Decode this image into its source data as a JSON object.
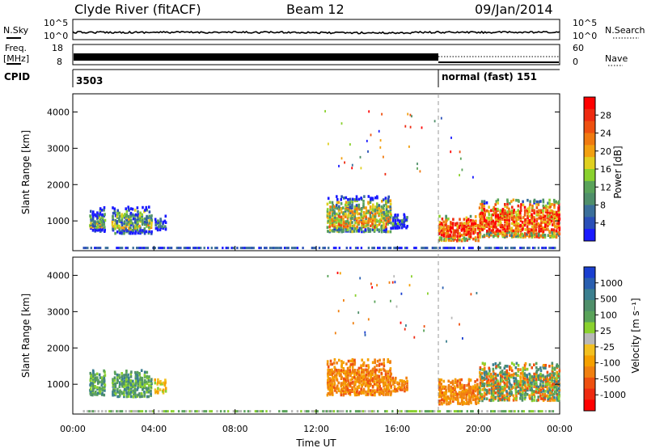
{
  "header": {
    "station": "Clyde River (fitACF)",
    "beam": "Beam 12",
    "date": "09/Jan/2014"
  },
  "strips": {
    "nsky_label": "N.Sky",
    "nsky_ticks": [
      "10^5",
      "10^0"
    ],
    "nsky_right_ticks": [
      "10^5",
      "10^0"
    ],
    "nsearch_label": "N.Search",
    "freq_label": "Freq.",
    "freq_unit": "[MHz]",
    "freq_ticks": [
      "18",
      "8"
    ],
    "nave_ticks": [
      "60",
      "0"
    ],
    "nave_label": "Nave",
    "cpid_label": "CPID",
    "cpid_first": "3503",
    "cpid_second": "normal (fast) 151"
  },
  "chart_data": [
    {
      "type": "heatmap",
      "name": "power-panel",
      "ylabel": "Slant Range [km]",
      "ylim": [
        180,
        4500
      ],
      "yticks": [
        1000,
        2000,
        3000,
        4000
      ],
      "xlim_hours": [
        0,
        24
      ],
      "colorbar": {
        "label": "Power [dB]",
        "ticks": [
          "4",
          "8",
          "12",
          "16",
          "20",
          "24",
          "28"
        ],
        "colors": [
          "#1a1aff",
          "#2a4fb8",
          "#3b6f9a",
          "#4f8f6a",
          "#5aa35a",
          "#8ad12e",
          "#e0d020",
          "#f2a010",
          "#f07a10",
          "#ee5010",
          "#ee2a10",
          "#ff0000"
        ]
      },
      "clusters": [
        {
          "t0": 0.8,
          "t1": 1.6,
          "r0": 700,
          "r1": 1400,
          "level": 0.4
        },
        {
          "t0": 1.9,
          "t1": 3.9,
          "r0": 650,
          "r1": 1400,
          "level": 0.45
        },
        {
          "t0": 4.0,
          "t1": 4.6,
          "r0": 750,
          "r1": 1150,
          "level": 0.25
        },
        {
          "t0": 12.5,
          "t1": 15.7,
          "r0": 700,
          "r1": 1700,
          "level": 0.6
        },
        {
          "t0": 15.7,
          "t1": 16.5,
          "r0": 800,
          "r1": 1200,
          "level": 0.25
        },
        {
          "t0": 18.0,
          "t1": 20.0,
          "r0": 450,
          "r1": 1150,
          "level": 0.95
        },
        {
          "t0": 20.0,
          "t1": 24.0,
          "r0": 550,
          "r1": 1600,
          "level": 0.9
        }
      ]
    },
    {
      "type": "heatmap",
      "name": "velocity-panel",
      "ylabel": "Slant Range [km]",
      "ylim": [
        180,
        4500
      ],
      "yticks": [
        1000,
        2000,
        3000,
        4000
      ],
      "xlim_hours": [
        0,
        24
      ],
      "xticks": [
        "00:00",
        "04:00",
        "08:00",
        "12:00",
        "16:00",
        "20:00",
        "00:00"
      ],
      "xlabel": "Time UT",
      "colorbar": {
        "label": "Velocity [m s⁻¹]",
        "ticks": [
          "1000",
          "500",
          "100",
          "25",
          "-25",
          "-100",
          "-500",
          "-1000"
        ],
        "colors": [
          "#1a3fd0",
          "#2a5fb0",
          "#3b7f8f",
          "#4f8f6a",
          "#5aa35a",
          "#8ad12e",
          "#b8b8b8",
          "#f2c020",
          "#f5a000",
          "#f08010",
          "#ee5010",
          "#ee2a10",
          "#ff0000"
        ]
      },
      "clusters": [
        {
          "t0": 0.8,
          "t1": 1.6,
          "r0": 700,
          "r1": 1400,
          "hue": "green"
        },
        {
          "t0": 1.9,
          "t1": 3.9,
          "r0": 650,
          "r1": 1400,
          "hue": "green"
        },
        {
          "t0": 4.0,
          "t1": 4.6,
          "r0": 750,
          "r1": 1150,
          "hue": "yellow"
        },
        {
          "t0": 12.5,
          "t1": 15.7,
          "r0": 700,
          "r1": 1700,
          "hue": "orange"
        },
        {
          "t0": 15.7,
          "t1": 16.5,
          "r0": 800,
          "r1": 1200,
          "hue": "orange"
        },
        {
          "t0": 18.0,
          "t1": 20.0,
          "r0": 450,
          "r1": 1150,
          "hue": "orange"
        },
        {
          "t0": 20.0,
          "t1": 24.0,
          "r0": 550,
          "r1": 1600,
          "hue": "mixed"
        }
      ]
    }
  ]
}
